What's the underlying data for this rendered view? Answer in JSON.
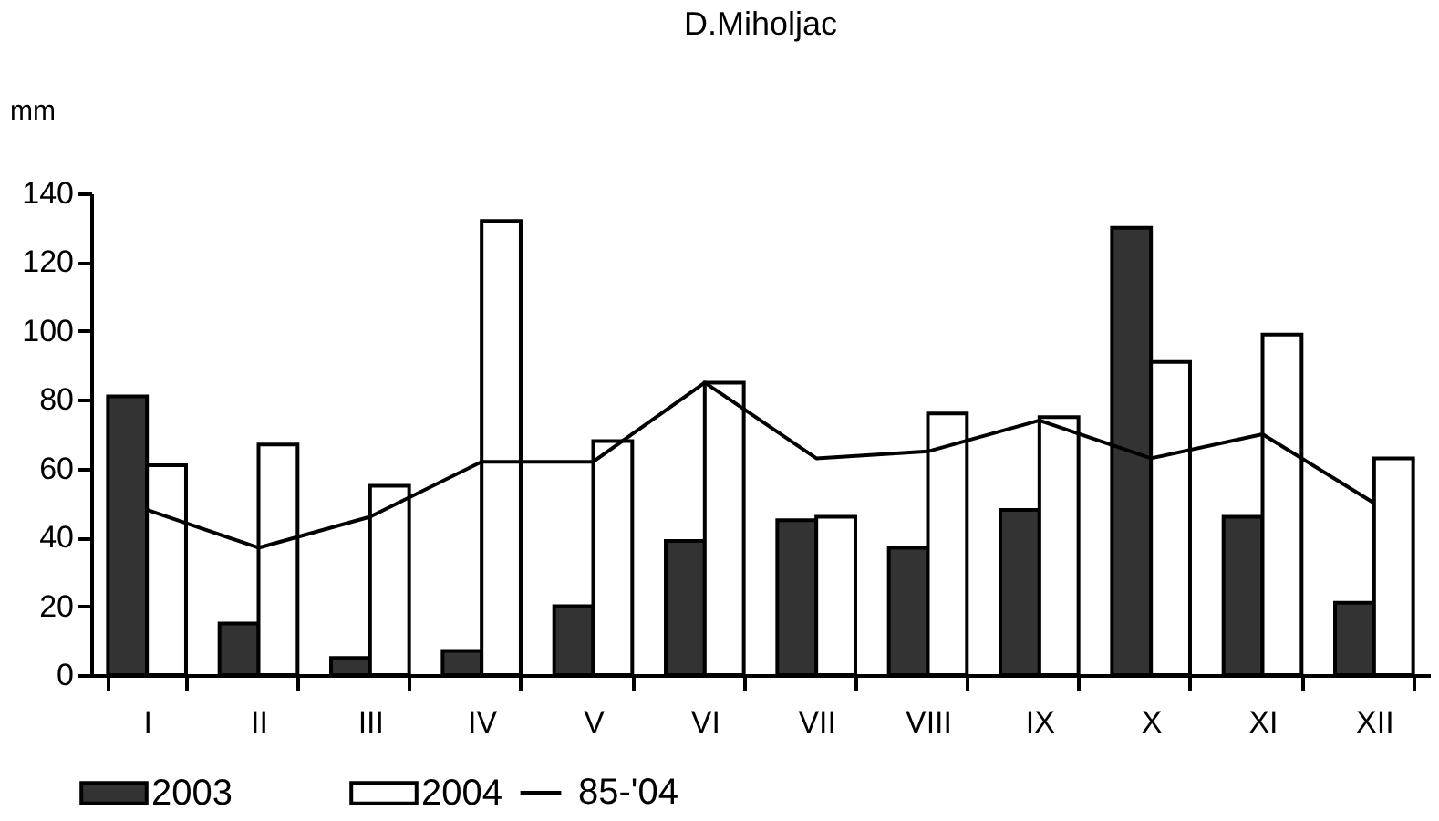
{
  "chart_data": {
    "type": "bar",
    "title": "D.Miholjac",
    "ylabel": "mm",
    "categories": [
      "I",
      "II",
      "III",
      "IV",
      "V",
      "VI",
      "VII",
      "VIII",
      "IX",
      "X",
      "XI",
      "XII"
    ],
    "series": [
      {
        "name": "2003",
        "color": "#333333",
        "values": [
          81,
          15,
          5,
          7,
          20,
          39,
          45,
          37,
          48,
          130,
          46,
          21
        ]
      },
      {
        "name": "2004",
        "color": "#ffffff",
        "values": [
          61,
          67,
          55,
          132,
          68,
          85,
          46,
          76,
          75,
          91,
          99,
          63
        ]
      },
      {
        "name": "85-'04",
        "type": "line",
        "color": "#000000",
        "values": [
          48,
          37,
          46,
          62,
          62,
          85,
          63,
          65,
          74,
          63,
          70,
          50
        ]
      }
    ],
    "ylim": [
      0,
      140
    ],
    "yticks": [
      0,
      20,
      40,
      60,
      80,
      100,
      120,
      140
    ],
    "grid": false,
    "legend": "bottom"
  }
}
